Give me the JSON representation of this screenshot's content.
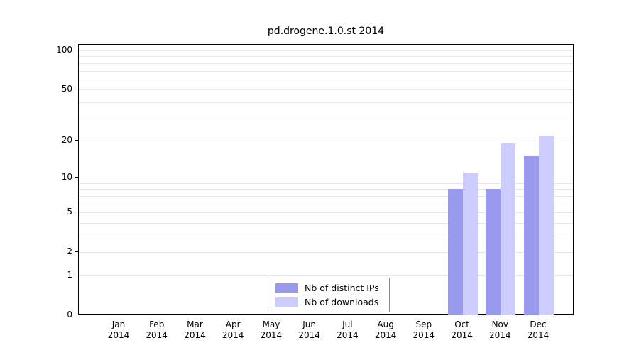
{
  "title": "pd.drogene.1.0.st 2014",
  "colors": {
    "distinct_ips": "#9999ee",
    "downloads": "#ccccff",
    "grid": "#e7e7e7",
    "axis": "#000000",
    "background": "#ffffff"
  },
  "chart_data": {
    "type": "bar",
    "title": "pd.drogene.1.0.st 2014",
    "scale": "log10(1+x)",
    "ylim": [
      0,
      100
    ],
    "y_ticks": [
      0,
      1,
      2,
      5,
      10,
      20,
      50,
      100
    ],
    "grid_values": [
      1,
      2,
      3,
      4,
      5,
      6,
      7,
      8,
      9,
      10,
      20,
      30,
      40,
      50,
      60,
      70,
      80,
      90,
      100
    ],
    "categories": [
      "Jan 2014",
      "Feb 2014",
      "Mar 2014",
      "Apr 2014",
      "May 2014",
      "Jun 2014",
      "Jul 2014",
      "Aug 2014",
      "Sep 2014",
      "Oct 2014",
      "Nov 2014",
      "Dec 2014"
    ],
    "series": [
      {
        "name": "Nb of distinct IPs",
        "color": "#9999ee",
        "values": [
          0,
          0,
          0,
          0,
          0,
          0,
          0,
          0,
          0,
          8,
          8,
          15
        ]
      },
      {
        "name": "Nb of downloads",
        "color": "#ccccff",
        "values": [
          0,
          0,
          0,
          0,
          0,
          0,
          0,
          0,
          0,
          11,
          19,
          22
        ]
      }
    ],
    "legend_position": "bottom-center",
    "grid": true
  }
}
